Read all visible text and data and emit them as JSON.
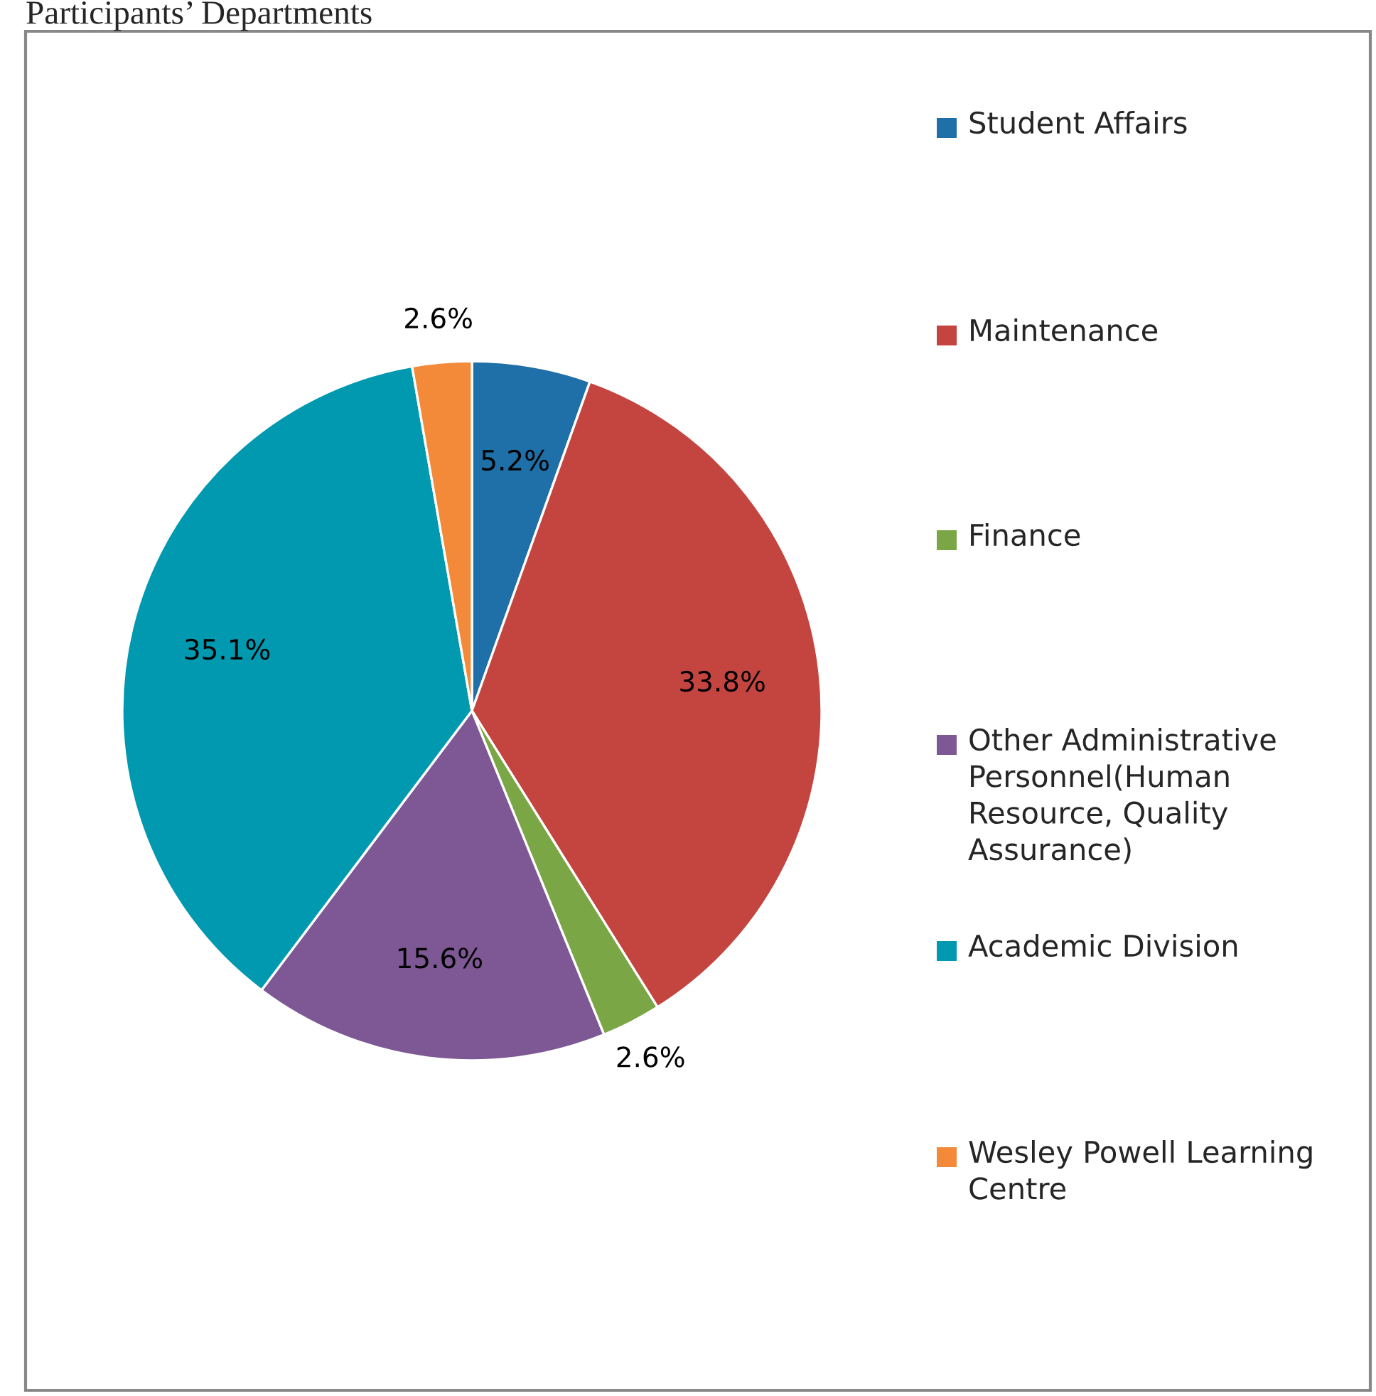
{
  "chart_data": {
    "type": "pie",
    "title": "Participants’ Departments",
    "categories": [
      "Student Affairs",
      "Maintenance",
      "Finance",
      "Other Administrative Personnel(Human Resource, Quality Assurance)",
      "Academic Division",
      "Wesley Powell Learning Centre"
    ],
    "values": [
      5.2,
      33.8,
      2.6,
      15.6,
      35.1,
      2.6
    ],
    "colors": [
      "#1f6fa8",
      "#c44440",
      "#7aa645",
      "#7d5894",
      "#0099b0",
      "#f28a3a"
    ],
    "value_labels": [
      "5.2%",
      "33.8%",
      "2.6%",
      "15.6%",
      "35.1%",
      "2.6%"
    ],
    "legend": "right"
  }
}
